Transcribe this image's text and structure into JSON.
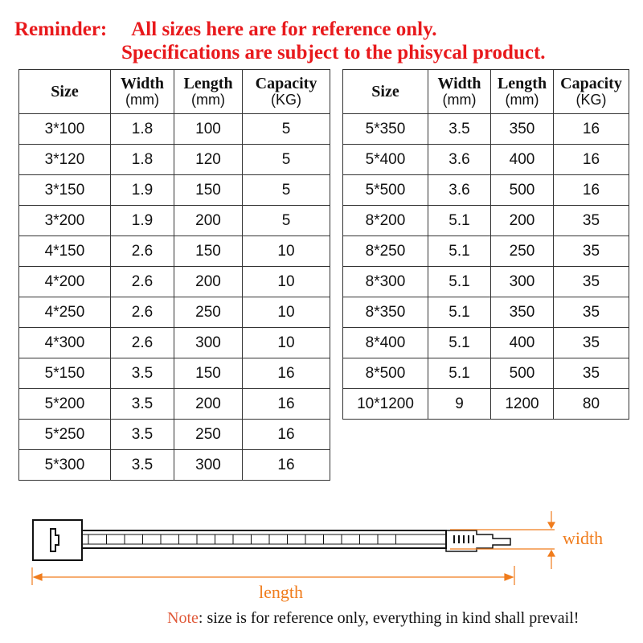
{
  "reminder": {
    "label": "Reminder:",
    "line1": "All sizes here are for reference only.",
    "line2": "Specifications are subject to the phisycal product."
  },
  "headers": [
    {
      "name": "Size",
      "unit": ""
    },
    {
      "name": "Width",
      "unit": "(mm)"
    },
    {
      "name": "Length",
      "unit": "(mm)"
    },
    {
      "name": "Capacity",
      "unit": "(KG)"
    }
  ],
  "left_rows": [
    [
      "3*100",
      "1.8",
      "100",
      "5"
    ],
    [
      "3*120",
      "1.8",
      "120",
      "5"
    ],
    [
      "3*150",
      "1.9",
      "150",
      "5"
    ],
    [
      "3*200",
      "1.9",
      "200",
      "5"
    ],
    [
      "4*150",
      "2.6",
      "150",
      "10"
    ],
    [
      "4*200",
      "2.6",
      "200",
      "10"
    ],
    [
      "4*250",
      "2.6",
      "250",
      "10"
    ],
    [
      "4*300",
      "2.6",
      "300",
      "10"
    ],
    [
      "5*150",
      "3.5",
      "150",
      "16"
    ],
    [
      "5*200",
      "3.5",
      "200",
      "16"
    ],
    [
      "5*250",
      "3.5",
      "250",
      "16"
    ],
    [
      "5*300",
      "3.5",
      "300",
      "16"
    ]
  ],
  "right_rows": [
    [
      "5*350",
      "3.5",
      "350",
      "16"
    ],
    [
      "5*400",
      "3.6",
      "400",
      "16"
    ],
    [
      "5*500",
      "3.6",
      "500",
      "16"
    ],
    [
      "8*200",
      "5.1",
      "200",
      "35"
    ],
    [
      "8*250",
      "5.1",
      "250",
      "35"
    ],
    [
      "8*300",
      "5.1",
      "300",
      "35"
    ],
    [
      "8*350",
      "5.1",
      "350",
      "35"
    ],
    [
      "8*400",
      "5.1",
      "400",
      "35"
    ],
    [
      "8*500",
      "5.1",
      "500",
      "35"
    ],
    [
      "10*1200",
      "9",
      "1200",
      "80"
    ]
  ],
  "diagram": {
    "width_label": "width",
    "length_label": "length",
    "accent": "#f07c1c"
  },
  "note": {
    "label": "Note",
    "text": ": size is for reference only, everything in kind shall prevail!"
  },
  "colors": {
    "reminder": "#e8191c"
  }
}
